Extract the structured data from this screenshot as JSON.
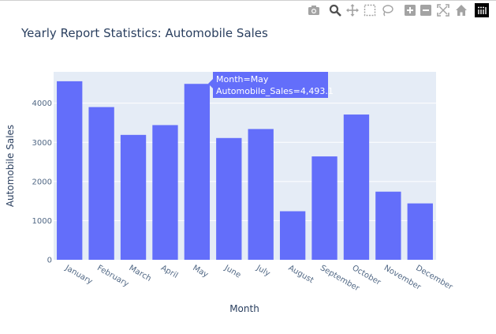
{
  "modebar": {
    "icons": [
      "camera-icon",
      "zoom-icon",
      "pan-icon",
      "box-select-icon",
      "lasso-select-icon",
      "zoom-in-icon",
      "zoom-out-icon",
      "autoscale-icon",
      "reset-axes-icon",
      "plotly-logo-icon"
    ],
    "icon_color": "#a3a3a3",
    "active_color": "#505050"
  },
  "chart_data": {
    "type": "bar",
    "title": "Yearly Report Statistics: Automobile Sales",
    "xlabel": "Month",
    "ylabel": "Automobile Sales",
    "categories": [
      "January",
      "February",
      "March",
      "April",
      "May",
      "June",
      "July",
      "August",
      "September",
      "October",
      "November",
      "December"
    ],
    "values": [
      4560,
      3900,
      3190,
      3440,
      4493.1,
      3110,
      3340,
      1240,
      2640,
      3710,
      1740,
      1440
    ],
    "ylim": [
      0,
      4800
    ],
    "yticks": [
      0,
      1000,
      2000,
      3000,
      4000
    ],
    "ytick_labels": [
      "0",
      "1000",
      "2000",
      "3000",
      "4000"
    ],
    "grid": true,
    "bar_color": "#636efa",
    "plot_bg": "#e5ecf6",
    "hover": {
      "category_index": 4,
      "line1": "Month=May",
      "line2": "Automobile_Sales=4,493.1"
    }
  }
}
